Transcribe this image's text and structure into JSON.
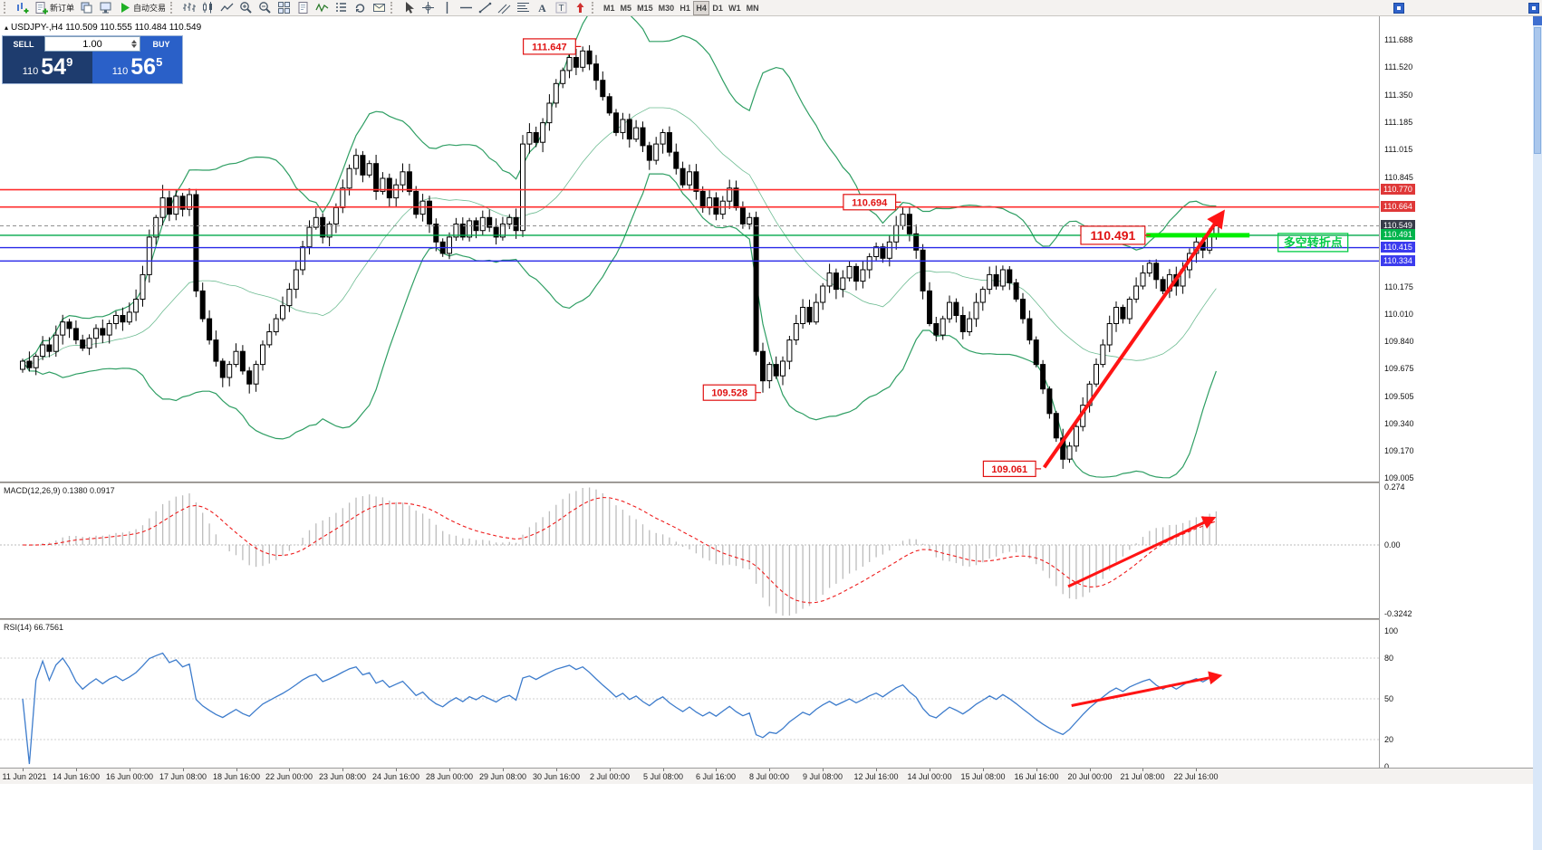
{
  "app": {
    "toolbar": {
      "groups": [
        {
          "grip": true,
          "items": [
            {
              "name": "new-chart",
              "icon": "chartplus"
            },
            {
              "name": "new-order",
              "icon": "docplus",
              "label": "新订单"
            },
            {
              "name": "profiles",
              "icon": "layers"
            },
            {
              "name": "market-watch",
              "icon": "monitor"
            },
            {
              "name": "auto-trading",
              "icon": "play",
              "label": "自动交易"
            }
          ]
        },
        {
          "grip": true,
          "items": [
            {
              "name": "chart-bars",
              "icon": "bars"
            },
            {
              "name": "chart-candles",
              "icon": "candles"
            },
            {
              "name": "chart-line",
              "icon": "linechart"
            },
            {
              "name": "zoom-in",
              "icon": "zoomin"
            },
            {
              "name": "zoom-out",
              "icon": "zoomout"
            },
            {
              "name": "tile-windows",
              "icon": "grid"
            },
            {
              "name": "templates",
              "icon": "doc"
            },
            {
              "name": "indicators",
              "icon": "wave"
            },
            {
              "name": "objects-list",
              "icon": "list"
            },
            {
              "name": "refresh",
              "icon": "cycle"
            },
            {
              "name": "news",
              "icon": "mail"
            }
          ]
        },
        {
          "grip": true,
          "items": [
            {
              "name": "cursor",
              "icon": "cursor"
            },
            {
              "name": "crosshair",
              "icon": "crosshair"
            },
            {
              "name": "vertical-line",
              "icon": "vline"
            },
            {
              "name": "horizontal-line",
              "icon": "hline"
            },
            {
              "name": "trendline",
              "icon": "trend"
            },
            {
              "name": "equidistant-channel",
              "icon": "channel"
            },
            {
              "name": "fibonacci",
              "icon": "fib"
            },
            {
              "name": "text",
              "icon": "textA"
            },
            {
              "name": "text-label",
              "icon": "textT"
            },
            {
              "name": "arrow-objects",
              "icon": "arrowup"
            }
          ]
        }
      ],
      "timeframes": {
        "items": [
          "M1",
          "M5",
          "M15",
          "M30",
          "H1",
          "H4",
          "D1",
          "W1",
          "MN"
        ],
        "active": "H4"
      }
    }
  },
  "trade_widget": {
    "collapse_icon": "▴",
    "sell_label": "SELL",
    "buy_label": "BUY",
    "volume": "1.00",
    "sell_price": {
      "prefix": "110",
      "big": "54",
      "sup": "9"
    },
    "buy_price": {
      "prefix": "110",
      "big": "56",
      "sup": "5"
    }
  },
  "time_axis": {
    "candles_per_label": 8,
    "labels": [
      "11 Jun 2021",
      "14 Jun 16:00",
      "16 Jun 00:00",
      "17 Jun 08:00",
      "18 Jun 16:00",
      "22 Jun 00:00",
      "23 Jun 08:00",
      "24 Jun 16:00",
      "28 Jun 00:00",
      "29 Jun 08:00",
      "30 Jun 16:00",
      "2 Jul 00:00",
      "5 Jul 08:00",
      "6 Jul 16:00",
      "8 Jul 00:00",
      "9 Jul 08:00",
      "12 Jul 16:00",
      "14 Jul 00:00",
      "15 Jul 08:00",
      "16 Jul 16:00",
      "20 Jul 00:00",
      "21 Jul 08:00",
      "22 Jul 16:00"
    ]
  },
  "chart_data": [
    {
      "type": "candlestick",
      "symbol": "USDJPY-",
      "timeframe": "H4",
      "legend": "USDJPY-,H4  110.509 110.555 110.484 110.549",
      "y_axis": {
        "min": 109.005,
        "max": 111.688,
        "ticks": [
          "111.688",
          "111.520",
          "111.350",
          "111.185",
          "111.015",
          "110.845",
          "110.175",
          "110.010",
          "109.840",
          "109.675",
          "109.505",
          "109.340",
          "109.170",
          "109.005"
        ],
        "badges": [
          {
            "text": "110.770",
            "color": "#df3838"
          },
          {
            "text": "110.664",
            "color": "#df3838"
          },
          {
            "text": "110.549",
            "color": "#383c4a"
          },
          {
            "text": "110.491",
            "color": "#00b44c"
          },
          {
            "text": "110.415",
            "color": "#3c3cee"
          },
          {
            "text": "110.334",
            "color": "#3c3cee"
          }
        ]
      },
      "closes": [
        109.72,
        109.68,
        109.75,
        109.82,
        109.78,
        109.88,
        109.96,
        109.92,
        109.85,
        109.8,
        109.86,
        109.92,
        109.88,
        109.95,
        110.0,
        109.96,
        110.02,
        110.1,
        110.25,
        110.48,
        110.6,
        110.72,
        110.62,
        110.73,
        110.65,
        110.74,
        110.15,
        109.98,
        109.85,
        109.72,
        109.62,
        109.7,
        109.78,
        109.66,
        109.58,
        109.7,
        109.82,
        109.9,
        109.98,
        110.06,
        110.16,
        110.28,
        110.42,
        110.54,
        110.6,
        110.48,
        110.56,
        110.66,
        110.78,
        110.9,
        110.98,
        110.86,
        110.93,
        110.76,
        110.84,
        110.72,
        110.8,
        110.88,
        110.76,
        110.62,
        110.7,
        110.56,
        110.45,
        110.38,
        110.48,
        110.56,
        110.48,
        110.58,
        110.52,
        110.6,
        110.54,
        110.48,
        110.56,
        110.6,
        110.52,
        111.05,
        111.12,
        111.06,
        111.18,
        111.3,
        111.42,
        111.5,
        111.58,
        111.52,
        111.62,
        111.54,
        111.44,
        111.34,
        111.24,
        111.12,
        111.2,
        111.08,
        111.15,
        111.04,
        110.95,
        111.05,
        111.12,
        111.0,
        110.9,
        110.8,
        110.88,
        110.76,
        110.66,
        110.72,
        110.62,
        110.7,
        110.78,
        110.66,
        110.56,
        110.6,
        109.78,
        109.6,
        109.7,
        109.63,
        109.72,
        109.85,
        109.95,
        110.05,
        109.96,
        110.08,
        110.18,
        110.26,
        110.16,
        110.23,
        110.3,
        110.21,
        110.28,
        110.36,
        110.42,
        110.35,
        110.45,
        110.55,
        110.62,
        110.5,
        110.4,
        110.15,
        109.95,
        109.88,
        109.98,
        110.08,
        110.0,
        109.9,
        109.98,
        110.08,
        110.16,
        110.25,
        110.18,
        110.28,
        110.2,
        110.1,
        109.98,
        109.85,
        109.7,
        109.55,
        109.4,
        109.25,
        109.12,
        109.2,
        109.32,
        109.45,
        109.58,
        109.7,
        109.82,
        109.95,
        110.05,
        109.98,
        110.1,
        110.18,
        110.26,
        110.32,
        110.22,
        110.15,
        110.25,
        110.18,
        110.28,
        110.38,
        110.45,
        110.4,
        110.5,
        110.55
      ],
      "wick_overrides": [
        {
          "i": 21,
          "high": 110.8
        },
        {
          "i": 84,
          "high": 111.647
        },
        {
          "i": 111,
          "low": 109.528
        },
        {
          "i": 156,
          "low": 109.061
        }
      ],
      "bollinger": {
        "period": 20,
        "deviation": 2,
        "color": "#2e9e63"
      },
      "hlines": [
        {
          "price": 110.77,
          "color": "#ff2d2d",
          "width": 1.6
        },
        {
          "price": 110.664,
          "color": "#ff2d2d",
          "width": 1.6
        },
        {
          "price": 110.549,
          "color": "#909090",
          "width": 1,
          "dash": "4 3"
        },
        {
          "price": 110.491,
          "color": "#00a84a",
          "width": 1.4
        },
        {
          "price": 110.415,
          "color": "#2828e8",
          "width": 1.4
        },
        {
          "price": 110.334,
          "color": "#2828e8",
          "width": 1.4
        }
      ],
      "price_labels": [
        {
          "text": "111.647",
          "i": 79,
          "price": 111.647,
          "size": 11
        },
        {
          "text": "110.694",
          "i": 127,
          "price": 110.694,
          "size": 11
        },
        {
          "text": "110.491",
          "i": 163.5,
          "price": 110.491,
          "size": 14
        },
        {
          "text": "109.528",
          "i": 106,
          "price": 109.528,
          "size": 11
        },
        {
          "text": "109.061",
          "i": 148,
          "price": 109.061,
          "size": 11
        }
      ],
      "note_label": {
        "text": "多空转折点",
        "i": 193.5,
        "price": 110.447,
        "color": "#00cc44",
        "size": 13
      },
      "support_segment": {
        "price": 110.491,
        "i1": 168.5,
        "i2": 184,
        "color": "#00ee00",
        "width": 5
      },
      "trend_arrow": {
        "from": {
          "i": 153.2,
          "price": 109.07
        },
        "to": {
          "i": 179.8,
          "price": 110.62
        },
        "color": "#ff1414",
        "width": 4
      }
    },
    {
      "type": "macd-histogram",
      "label": "MACD(12,26,9) 0.1380 0.0917",
      "params": {
        "fast": 12,
        "slow": 26,
        "signal": 9
      },
      "current": {
        "macd": 0.138,
        "signal": 0.0917
      },
      "y_axis": {
        "ticks": [
          "0.274",
          "0.00",
          "-0.3242"
        ],
        "max": 0.274,
        "min": -0.3242
      },
      "colors": {
        "histogram": "#bcbcbc",
        "signal": "#ee1c1c"
      },
      "trend_arrow": {
        "from": {
          "i": 156.8,
          "v": -0.196
        },
        "to": {
          "i": 178.4,
          "v": 0.124
        },
        "color": "#ff1414",
        "width": 3
      }
    },
    {
      "type": "rsi",
      "label": "RSI(14) 66.7561",
      "period": 14,
      "current": 66.7561,
      "y_axis": {
        "ticks": [
          "100",
          "80",
          "50",
          "20",
          "0"
        ],
        "max": 100,
        "min": 0
      },
      "levels": [
        80,
        50,
        20
      ],
      "color": "#3d7ccc",
      "trend_arrow": {
        "from": {
          "i": 157.3,
          "v": 45
        },
        "to": {
          "i": 179.3,
          "v": 66.8
        },
        "color": "#ff1414",
        "width": 3
      }
    }
  ]
}
